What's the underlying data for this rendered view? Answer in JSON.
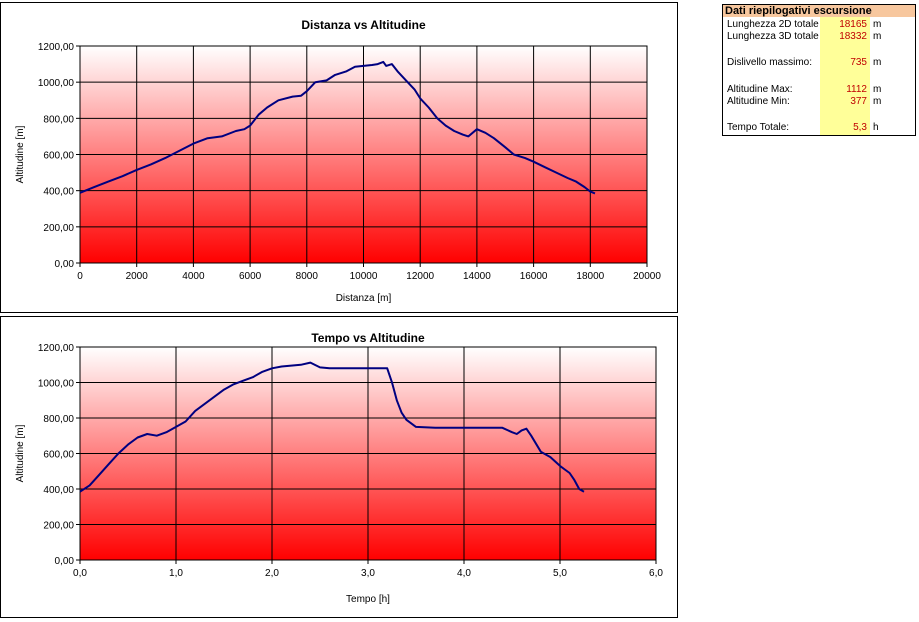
{
  "chart_data": [
    {
      "type": "line",
      "title": "Distanza vs Altitudine",
      "xlabel": "Distanza [m]",
      "ylabel": "Altitudine [m]",
      "xlim": [
        0,
        20000
      ],
      "ylim": [
        0,
        1200
      ],
      "x_ticks": [
        "0",
        "2000",
        "4000",
        "6000",
        "8000",
        "10000",
        "12000",
        "14000",
        "16000",
        "18000",
        "20000"
      ],
      "y_ticks": [
        "0,00",
        "200,00",
        "400,00",
        "600,00",
        "800,00",
        "1000,00",
        "1200,00"
      ],
      "grid": true,
      "series": [
        {
          "color": "#000080",
          "x": [
            0,
            500,
            1000,
            1500,
            2000,
            2500,
            3000,
            3500,
            4000,
            4500,
            5000,
            5500,
            5800,
            6000,
            6300,
            6600,
            7000,
            7500,
            7800,
            8000,
            8300,
            8700,
            9000,
            9400,
            9700,
            10000,
            10300,
            10500,
            10700,
            10800,
            11000,
            11200,
            11500,
            11800,
            12000,
            12300,
            12600,
            12900,
            13200,
            13500,
            13700,
            14000,
            14300,
            14600,
            15000,
            15300,
            15700,
            16000,
            16400,
            16800,
            17200,
            17500,
            17800,
            18000,
            18165
          ],
          "y": [
            388,
            420,
            450,
            480,
            515,
            545,
            580,
            620,
            660,
            690,
            700,
            730,
            740,
            760,
            820,
            860,
            900,
            920,
            925,
            950,
            1000,
            1010,
            1040,
            1060,
            1085,
            1090,
            1095,
            1100,
            1112,
            1090,
            1100,
            1060,
            1010,
            960,
            910,
            860,
            800,
            760,
            730,
            710,
            700,
            740,
            720,
            690,
            640,
            600,
            580,
            560,
            530,
            500,
            470,
            450,
            420,
            395,
            385
          ]
        }
      ]
    },
    {
      "type": "line",
      "title": "Tempo vs Altitudine",
      "xlabel": "Tempo [h]",
      "ylabel": "Altitudine [m]",
      "xlim": [
        0,
        6
      ],
      "ylim": [
        0,
        1200
      ],
      "x_ticks": [
        "0,0",
        "1,0",
        "2,0",
        "3,0",
        "4,0",
        "5,0",
        "6,0"
      ],
      "y_ticks": [
        "0,00",
        "200,00",
        "400,00",
        "600,00",
        "800,00",
        "1000,00",
        "1200,00"
      ],
      "grid": true,
      "series": [
        {
          "color": "#000080",
          "x": [
            0,
            0.1,
            0.2,
            0.3,
            0.4,
            0.5,
            0.6,
            0.7,
            0.8,
            0.9,
            1.0,
            1.1,
            1.2,
            1.3,
            1.4,
            1.5,
            1.6,
            1.7,
            1.8,
            1.9,
            2.0,
            2.1,
            2.2,
            2.3,
            2.4,
            2.5,
            2.6,
            2.8,
            3.0,
            3.2,
            3.25,
            3.3,
            3.35,
            3.4,
            3.5,
            3.7,
            4.0,
            4.2,
            4.4,
            4.5,
            4.55,
            4.6,
            4.65,
            4.7,
            4.8,
            4.9,
            5.0,
            5.05,
            5.1,
            5.15,
            5.2,
            5.25
          ],
          "y": [
            385,
            420,
            480,
            540,
            600,
            650,
            690,
            710,
            700,
            720,
            750,
            780,
            840,
            880,
            920,
            960,
            990,
            1010,
            1030,
            1060,
            1080,
            1090,
            1095,
            1100,
            1112,
            1085,
            1080,
            1080,
            1080,
            1080,
            1000,
            900,
            830,
            790,
            750,
            745,
            745,
            745,
            745,
            720,
            710,
            730,
            740,
            700,
            610,
            580,
            530,
            510,
            490,
            450,
            400,
            385
          ]
        }
      ]
    }
  ],
  "summary": {
    "title": "Dati riepilogativi escursione",
    "rows": [
      {
        "label": "Lunghezza 2D totale",
        "value": "18165",
        "unit": "m"
      },
      {
        "label": "Lunghezza 3D totale",
        "value": "18332",
        "unit": "m"
      },
      {
        "label": "Dislivello massimo:",
        "value": "735",
        "unit": "m"
      },
      {
        "label": "Altitudine Max:",
        "value": "1112",
        "unit": "m"
      },
      {
        "label": "Altitudine Min:",
        "value": "377",
        "unit": "m"
      },
      {
        "label": "Tempo Totale:",
        "value": "5,3",
        "unit": "h"
      }
    ]
  }
}
